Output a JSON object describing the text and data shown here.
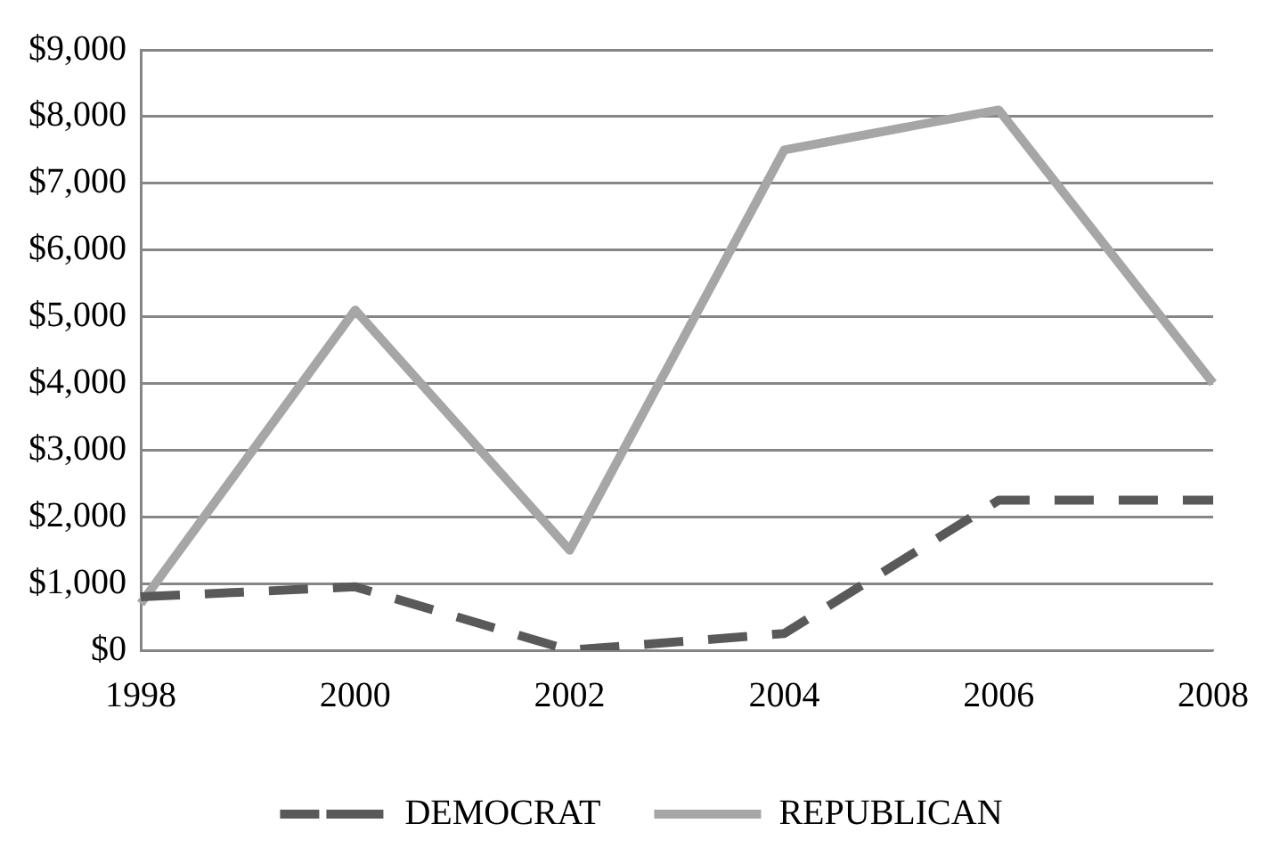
{
  "chart_data": {
    "type": "line",
    "categories": [
      "1998",
      "2000",
      "2002",
      "2004",
      "2006",
      "2008"
    ],
    "series": [
      {
        "name": "DEMOCRAT",
        "color": "#595959",
        "line_style": "dashed",
        "values": [
          800,
          950,
          0,
          250,
          2250,
          2250
        ]
      },
      {
        "name": "REPUBLICAN",
        "color": "#a6a6a6",
        "line_style": "solid",
        "values": [
          700,
          5100,
          1500,
          7500,
          8100,
          4000
        ]
      }
    ],
    "ylim": [
      0,
      9000
    ],
    "yticks": [
      {
        "value": 0,
        "label": "$0"
      },
      {
        "value": 1000,
        "label": "$1,000"
      },
      {
        "value": 2000,
        "label": "$2,000"
      },
      {
        "value": 3000,
        "label": "$3,000"
      },
      {
        "value": 4000,
        "label": "$4,000"
      },
      {
        "value": 5000,
        "label": "$5,000"
      },
      {
        "value": 6000,
        "label": "$6,000"
      },
      {
        "value": 7000,
        "label": "$7,000"
      },
      {
        "value": 8000,
        "label": "$8,000"
      },
      {
        "value": 9000,
        "label": "$9,000"
      }
    ],
    "grid": "y",
    "legend": "bottom",
    "marker": "none"
  }
}
